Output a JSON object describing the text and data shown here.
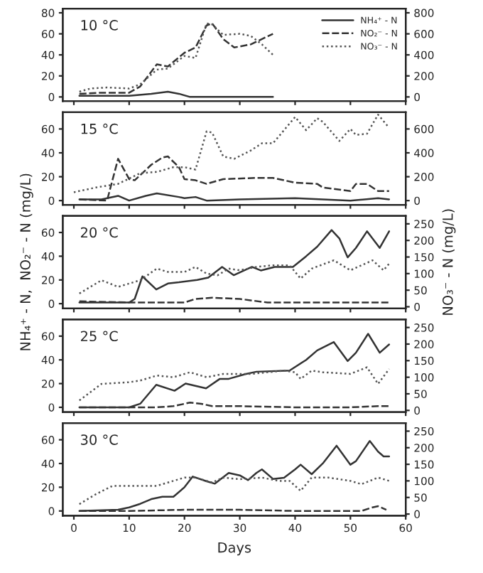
{
  "chart_data": [
    {
      "type": "line",
      "annotations": [
        "10 °C"
      ],
      "xlim": [
        -2,
        60
      ],
      "xticks": [
        0,
        10,
        20,
        30,
        40,
        50,
        60
      ],
      "ylim": [
        -4,
        84
      ],
      "yticks": [
        0,
        20,
        40,
        60,
        80
      ],
      "y2lim": [
        -40,
        840
      ],
      "y2ticks": [
        0,
        200,
        400,
        600,
        800
      ],
      "tick_labels": "y",
      "legend": "top right",
      "series": [
        {
          "name": "NH₄⁺ - N",
          "color": "#333333",
          "line_style": "solid",
          "x": [
            1,
            5,
            10,
            14,
            17,
            19,
            21,
            25,
            30,
            36
          ],
          "values": [
            1,
            1,
            1,
            3,
            5,
            3,
            0,
            0,
            0,
            0
          ]
        },
        {
          "name": "NO₂⁻ - N",
          "color": "#333333",
          "line_style": "dashed",
          "x": [
            1,
            5,
            10,
            12,
            15,
            17,
            20,
            22,
            24,
            25,
            27,
            29,
            32,
            36
          ],
          "values": [
            3,
            4,
            4,
            10,
            31,
            29,
            42,
            47,
            68,
            70,
            55,
            47,
            50,
            60
          ]
        },
        {
          "name": "NO₃⁻ - N",
          "color": "#555555",
          "line_style": "dotted",
          "axis": "y2",
          "x": [
            1,
            3,
            6,
            10,
            12,
            15,
            17,
            19,
            20,
            22,
            24,
            25,
            27,
            30,
            32,
            34,
            36
          ],
          "values": [
            50,
            80,
            90,
            80,
            120,
            260,
            270,
            350,
            390,
            370,
            700,
            690,
            590,
            600,
            580,
            500,
            400
          ]
        }
      ]
    },
    {
      "type": "line",
      "annotations": [
        "15 °C"
      ],
      "xlim": [
        -2,
        60
      ],
      "xticks": [
        0,
        10,
        20,
        30,
        40,
        50,
        60
      ],
      "ylim": [
        -3.5,
        74
      ],
      "yticks": [
        0,
        20,
        40,
        60
      ],
      "y2lim": [
        -35,
        740
      ],
      "y2ticks": [
        0,
        200,
        400,
        600
      ],
      "tick_labels": "y",
      "series": [
        {
          "color": "#333333",
          "line_style": "solid",
          "x": [
            1,
            5,
            8,
            10,
            13,
            15,
            19,
            20,
            22,
            24,
            30,
            40,
            45,
            50,
            55,
            57
          ],
          "values": [
            1,
            1,
            4,
            0,
            4,
            6,
            3,
            2,
            3,
            0,
            1,
            2,
            1,
            0,
            2,
            1
          ]
        },
        {
          "color": "#333333",
          "line_style": "dashed",
          "x": [
            1,
            6,
            8,
            10,
            11,
            14,
            16,
            17,
            19,
            20,
            22,
            24,
            27,
            33,
            36,
            40,
            44,
            45,
            50,
            51,
            53,
            55,
            57
          ],
          "values": [
            1,
            0,
            35,
            18,
            17,
            30,
            36,
            37,
            28,
            18,
            17,
            14,
            18,
            19,
            19,
            15,
            14,
            11,
            8,
            14,
            14,
            8,
            8
          ]
        },
        {
          "color": "#555555",
          "line_style": "dotted",
          "axis": "y2",
          "x": [
            0,
            4,
            8,
            12,
            15,
            18,
            20,
            22,
            24,
            25,
            27,
            29,
            32,
            34,
            36,
            40,
            42,
            44,
            45,
            48,
            50,
            51,
            53,
            55,
            57
          ],
          "values": [
            70,
            110,
            140,
            230,
            240,
            280,
            280,
            260,
            580,
            570,
            370,
            350,
            420,
            480,
            480,
            700,
            590,
            690,
            660,
            500,
            600,
            550,
            560,
            720,
            610
          ]
        }
      ]
    },
    {
      "type": "line",
      "annotations": [
        "20 °C"
      ],
      "ylabel": "NH₄⁺ - N,  NO₂⁻ - N (mg/L)",
      "y2label": "NO₃⁻ - N (mg/L)",
      "xlim": [
        -2,
        60
      ],
      "xticks": [
        0,
        10,
        20,
        30,
        40,
        50,
        60
      ],
      "ylim": [
        -4,
        74
      ],
      "yticks": [
        0,
        20,
        40,
        60
      ],
      "y2lim": [
        -5,
        274
      ],
      "y2ticks": [
        0,
        50,
        100,
        150,
        200,
        250
      ],
      "tick_labels": "y",
      "series": [
        {
          "color": "#333333",
          "line_style": "solid",
          "x": [
            1,
            5,
            10,
            11,
            12.4,
            14.9,
            17,
            19,
            22.3,
            24.3,
            26.8,
            28.9,
            32.2,
            33.8,
            36.3,
            39.6,
            42,
            44,
            46.6,
            48,
            49.5,
            51,
            53,
            55.3,
            57
          ],
          "values": [
            1,
            1,
            1,
            4,
            23,
            12,
            17,
            18,
            20,
            22,
            31,
            24,
            31,
            28,
            31,
            31,
            40,
            48,
            62,
            55,
            39,
            47,
            61,
            47,
            61
          ]
        },
        {
          "color": "#333333",
          "line_style": "dashed",
          "x": [
            1,
            10,
            20,
            22,
            25,
            30,
            35,
            40,
            57
          ],
          "values": [
            2,
            1,
            1,
            4,
            5,
            4,
            1,
            1,
            1
          ]
        },
        {
          "color": "#555555",
          "line_style": "dotted",
          "axis": "y2",
          "x": [
            1,
            5,
            8,
            12,
            15,
            17,
            20,
            22,
            24,
            26,
            28,
            30,
            33,
            36,
            39,
            41,
            43,
            47,
            50,
            54,
            56,
            57
          ],
          "values": [
            40,
            80,
            60,
            80,
            115,
            105,
            105,
            120,
            100,
            95,
            115,
            110,
            120,
            125,
            125,
            85,
            115,
            140,
            110,
            140,
            110,
            130
          ]
        }
      ]
    },
    {
      "type": "line",
      "annotations": [
        "25 °C"
      ],
      "xlim": [
        -2,
        60
      ],
      "xticks": [
        0,
        10,
        20,
        30,
        40,
        50,
        60
      ],
      "ylim": [
        -4,
        74
      ],
      "yticks": [
        0,
        20,
        40,
        60
      ],
      "y2lim": [
        -5,
        274
      ],
      "y2ticks": [
        0,
        50,
        100,
        150,
        200,
        250
      ],
      "tick_labels": "y",
      "series": [
        {
          "color": "#333333",
          "line_style": "solid",
          "x": [
            1,
            10,
            12,
            14.9,
            18.2,
            20.2,
            23.9,
            26.4,
            28,
            31,
            33,
            39,
            42,
            44,
            47,
            49.5,
            51,
            53.2,
            55.3,
            57
          ],
          "values": [
            0,
            0,
            3,
            19,
            14,
            20,
            16,
            24,
            24,
            28,
            30,
            31,
            40,
            48,
            55,
            39,
            46,
            62,
            46,
            53
          ]
        },
        {
          "color": "#333333",
          "line_style": "dashed",
          "x": [
            1,
            15,
            18,
            20,
            21,
            23,
            25,
            30,
            40,
            50,
            55,
            57
          ],
          "values": [
            0,
            0,
            1,
            3,
            4,
            3,
            1,
            1,
            0,
            0,
            1,
            1
          ]
        },
        {
          "color": "#555555",
          "line_style": "dotted",
          "axis": "y2",
          "x": [
            1,
            5,
            10,
            12,
            15,
            18,
            21,
            24,
            27,
            32,
            35,
            38,
            40,
            41,
            43,
            45,
            50,
            53,
            55,
            57
          ],
          "values": [
            30,
            80,
            85,
            90,
            105,
            100,
            115,
            100,
            110,
            110,
            115,
            120,
            115,
            95,
            120,
            115,
            110,
            130,
            80,
            125
          ]
        }
      ]
    },
    {
      "type": "line",
      "annotations": [
        "30 °C"
      ],
      "xlabel": "Days",
      "xlim": [
        -2,
        60
      ],
      "xticks": [
        0,
        10,
        20,
        30,
        40,
        50,
        60
      ],
      "ylim": [
        -4,
        74
      ],
      "yticks": [
        0,
        20,
        40,
        60
      ],
      "y2lim": [
        -5,
        274
      ],
      "y2ticks": [
        0,
        50,
        100,
        150,
        200,
        250
      ],
      "series": [
        {
          "color": "#333333",
          "line_style": "solid",
          "x": [
            1,
            8,
            10,
            12,
            14,
            16,
            18,
            20,
            21.5,
            24,
            25.5,
            28,
            30,
            31.5,
            33,
            34,
            36,
            38,
            40,
            41,
            43,
            45,
            47.5,
            50,
            51,
            53.5,
            55,
            56,
            57
          ],
          "values": [
            0,
            1,
            3,
            6,
            10,
            12,
            12,
            20,
            29,
            25,
            23,
            32,
            30,
            26,
            32,
            35,
            27,
            28,
            35,
            39,
            31,
            40,
            55,
            39,
            42,
            59,
            50,
            46,
            46
          ]
        },
        {
          "color": "#333333",
          "line_style": "dashed",
          "x": [
            1,
            10,
            20,
            30,
            40,
            50,
            52,
            54,
            55,
            56.5
          ],
          "values": [
            0,
            0,
            1,
            1,
            0,
            0,
            0,
            3,
            4,
            1
          ]
        },
        {
          "color": "#555555",
          "line_style": "dotted",
          "axis": "y2",
          "x": [
            1,
            4,
            7,
            10,
            15,
            17,
            20,
            22,
            25,
            27,
            30,
            34,
            37,
            39,
            41,
            43,
            46,
            50,
            52,
            55,
            57
          ],
          "values": [
            30,
            60,
            85,
            85,
            85,
            95,
            110,
            110,
            95,
            110,
            105,
            110,
            100,
            100,
            70,
            110,
            110,
            100,
            90,
            110,
            100
          ]
        }
      ]
    }
  ]
}
